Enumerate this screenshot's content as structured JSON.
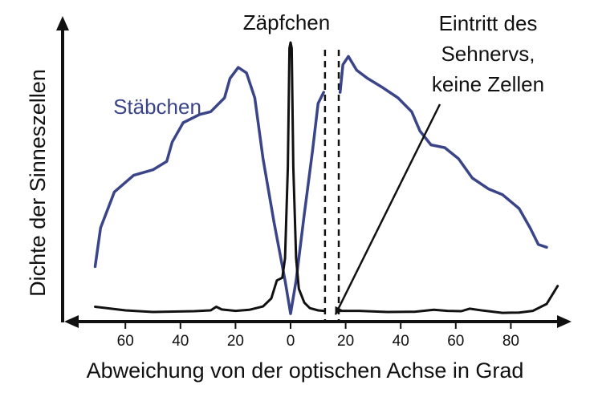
{
  "chart_data": {
    "type": "line",
    "title": "",
    "xlabel": "Abweichung von der optischen Achse in Grad",
    "ylabel": "Dichte der Sinneszellen",
    "xlim": [
      -78,
      98
    ],
    "ylim": [
      0,
      100
    ],
    "x_ticks": [
      -60,
      -40,
      -20,
      0,
      20,
      40,
      60,
      80
    ],
    "x_tick_labels": [
      "60",
      "40",
      "20",
      "0",
      "20",
      "40",
      "60",
      "80"
    ],
    "grid": false,
    "legend": "none",
    "blind_spot": {
      "x_start": 12.5,
      "x_end": 17.5
    },
    "series": [
      {
        "name": "Stäbchen",
        "color": "#3a4488",
        "segments": [
          [
            [
              -71,
              19
            ],
            [
              -69,
              33
            ],
            [
              -64,
              46
            ],
            [
              -57,
              52
            ],
            [
              -50,
              54
            ],
            [
              -45,
              57
            ],
            [
              -43,
              64
            ],
            [
              -39,
              71
            ],
            [
              -33,
              74
            ],
            [
              -29,
              75
            ],
            [
              -24,
              80
            ],
            [
              -22,
              87
            ],
            [
              -19,
              91
            ],
            [
              -16,
              89
            ],
            [
              -13,
              80
            ],
            [
              -10,
              58
            ],
            [
              -6,
              35
            ],
            [
              -2,
              14
            ],
            [
              0,
              2
            ],
            [
              2,
              14
            ],
            [
              5,
              38
            ],
            [
              8,
              61
            ],
            [
              10,
              78
            ],
            [
              12,
              82
            ]
          ],
          [
            [
              18,
              82
            ],
            [
              19,
              92
            ],
            [
              21,
              95
            ],
            [
              24,
              90
            ],
            [
              28,
              87
            ],
            [
              33,
              84
            ],
            [
              39,
              80
            ],
            [
              44,
              75
            ],
            [
              47,
              68
            ],
            [
              51,
              63
            ],
            [
              56,
              62
            ],
            [
              61,
              58
            ],
            [
              66,
              51
            ],
            [
              72,
              47
            ],
            [
              77,
              45
            ],
            [
              83,
              40
            ],
            [
              87,
              33
            ],
            [
              90,
              27
            ],
            [
              93,
              26
            ]
          ]
        ]
      },
      {
        "name": "Zäpfchen",
        "color": "#111111",
        "segments": [
          [
            [
              -71,
              4.5
            ],
            [
              -60,
              3.2
            ],
            [
              -50,
              2.6
            ],
            [
              -35,
              2.9
            ],
            [
              -29,
              3.2
            ],
            [
              -27,
              4.5
            ],
            [
              -25,
              3.5
            ],
            [
              -20,
              3.0
            ],
            [
              -15,
              3.4
            ],
            [
              -10,
              4.6
            ],
            [
              -7,
              7.5
            ],
            [
              -5,
              14
            ],
            [
              -3,
              15
            ],
            [
              -2,
              22
            ],
            [
              -1,
              55
            ],
            [
              -0.4,
              98
            ],
            [
              0,
              100
            ],
            [
              0.4,
              98
            ],
            [
              1,
              55
            ],
            [
              2,
              22
            ],
            [
              3,
              11
            ],
            [
              5,
              6
            ],
            [
              7,
              4
            ],
            [
              10,
              3.2
            ],
            [
              12,
              3
            ]
          ],
          [
            [
              18,
              3
            ],
            [
              25,
              3.0
            ],
            [
              35,
              2.6
            ],
            [
              45,
              2.7
            ],
            [
              52,
              3.4
            ],
            [
              57,
              3.0
            ],
            [
              62,
              2.9
            ],
            [
              65,
              3.8
            ],
            [
              70,
              3.1
            ],
            [
              77,
              2.3
            ],
            [
              83,
              2.4
            ],
            [
              88,
              3.0
            ],
            [
              93,
              5.5
            ],
            [
              97,
              12
            ]
          ]
        ]
      }
    ],
    "annotations": {
      "zapfchen_label": "Zäpfchen",
      "staebchen_label": "Stäbchen",
      "blind_spot_label": [
        "Eintritt des",
        "Sehnervs,",
        "keine Zellen"
      ]
    }
  }
}
